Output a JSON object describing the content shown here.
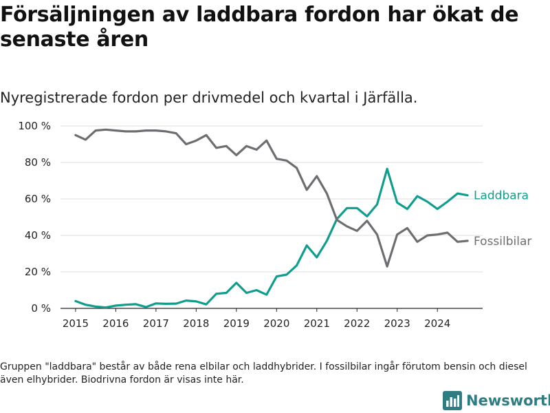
{
  "header": {
    "title": "Försäljningen av laddbara fordon har ökat de senaste åren",
    "subtitle": "Nyregistrerade fordon per drivmedel och kvartal i Järfälla."
  },
  "footer": {
    "note": "Gruppen \"laddbara\" består av både rena elbilar och laddhybrider. I fossilbilar ingår förutom bensin och diesel även elhybrider. Biodrivna fordon är visas inte här.",
    "brand": "Newsworthy"
  },
  "colors": {
    "laddbara": "#0f9e8e",
    "fossil": "#6d6d72",
    "grid": "#dddddd",
    "axis": "#222222",
    "brand": "#2e7d83"
  },
  "chart_data": {
    "type": "line",
    "title": "Försäljningen av laddbara fordon har ökat de senaste åren",
    "subtitle": "Nyregistrerade fordon per drivmedel och kvartal i Järfälla.",
    "xlabel": "",
    "ylabel": "",
    "ylim": [
      0,
      100
    ],
    "yticks": [
      0,
      20,
      40,
      60,
      80,
      100
    ],
    "ytick_labels": [
      "0 %",
      "20 %",
      "40 %",
      "60 %",
      "80 %",
      "100 %"
    ],
    "xlim": [
      2014.625,
      2025.125
    ],
    "xticks": [
      2015,
      2016,
      2017,
      2018,
      2019,
      2020,
      2021,
      2022,
      2023,
      2024
    ],
    "xtick_labels": [
      "2015",
      "2016",
      "2017",
      "2018",
      "2019",
      "2020",
      "2021",
      "2022",
      "2023",
      "2024"
    ],
    "grid": true,
    "x": [
      2015,
      2015.25,
      2015.5,
      2015.75,
      2016,
      2016.25,
      2016.5,
      2016.75,
      2017,
      2017.25,
      2017.5,
      2017.75,
      2018,
      2018.25,
      2018.5,
      2018.75,
      2019,
      2019.25,
      2019.5,
      2019.75,
      2020,
      2020.25,
      2020.5,
      2020.75,
      2021,
      2021.25,
      2021.5,
      2021.75,
      2022,
      2022.25,
      2022.5,
      2022.75,
      2023,
      2023.25,
      2023.5,
      2023.75,
      2024,
      2024.25,
      2024.5,
      2024.75
    ],
    "series": [
      {
        "name": "Laddbara",
        "color": "#0f9e8e",
        "values": [
          4,
          2,
          1,
          0.5,
          1.5,
          2,
          2.3,
          0.7,
          2.7,
          2.5,
          2.6,
          4.3,
          3.8,
          2.2,
          8,
          8.5,
          14,
          8.5,
          10,
          7.5,
          17.5,
          18.5,
          23.5,
          34.5,
          28,
          37,
          49,
          55,
          55,
          50.5,
          57,
          76.5,
          58,
          54.5,
          61.5,
          58.5,
          54.5,
          58.5,
          63,
          62
        ]
      },
      {
        "name": "Fossilbilar",
        "color": "#6d6d72",
        "values": [
          95,
          92.5,
          97.5,
          98,
          97.5,
          97,
          97,
          97.5,
          97.5,
          97,
          96,
          90,
          92,
          95,
          88,
          89,
          84,
          89,
          87,
          92,
          82,
          81,
          77,
          65,
          72.5,
          63,
          48.5,
          45,
          42.5,
          48,
          40.5,
          23,
          40.5,
          44,
          36.5,
          40,
          40.5,
          41.5,
          36.5,
          37
        ]
      }
    ],
    "legend": "inline-right"
  }
}
